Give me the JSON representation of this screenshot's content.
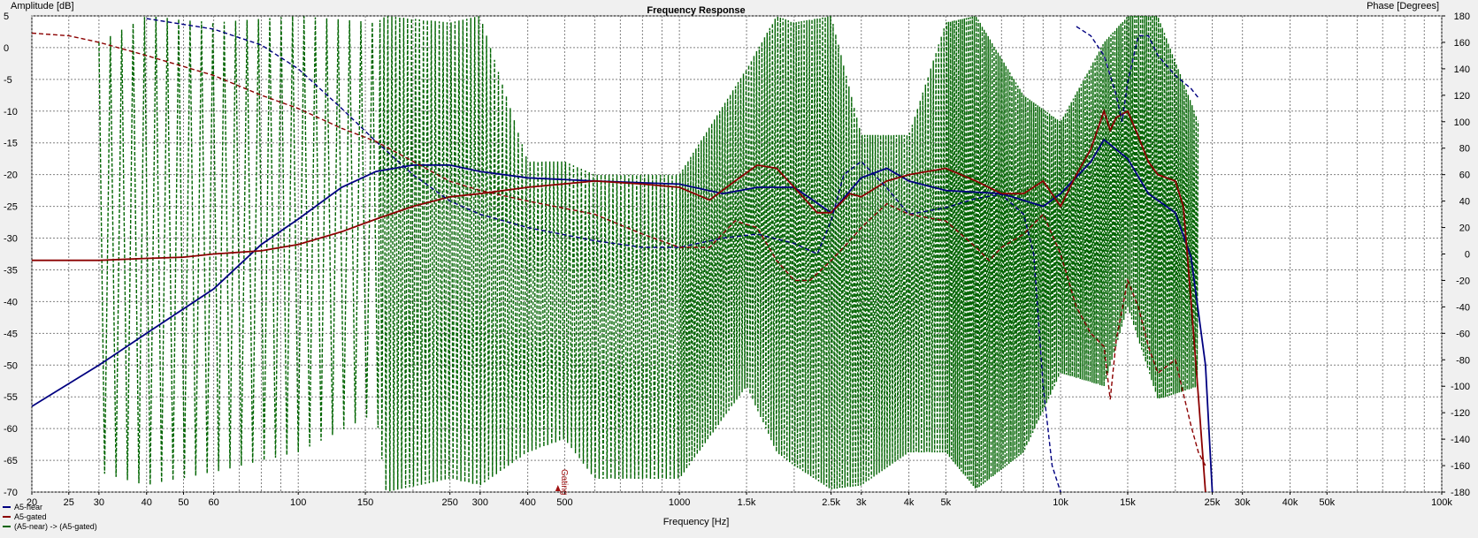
{
  "chart_data": {
    "type": "line",
    "title": "Frequency Response",
    "xlabel": "Frequency [Hz]",
    "ylabel_left": "Amplitude [dB]",
    "ylabel_right": "Phase [Degrees]",
    "x_scale": "log",
    "xlim": [
      20,
      100000
    ],
    "ylim_left": [
      -70,
      5
    ],
    "ylim_right": [
      -180,
      180
    ],
    "x_ticks": [
      {
        "v": 20,
        "label": "20"
      },
      {
        "v": 25,
        "label": "25"
      },
      {
        "v": 30,
        "label": "30"
      },
      {
        "v": 40,
        "label": "40"
      },
      {
        "v": 50,
        "label": "50"
      },
      {
        "v": 60,
        "label": "60"
      },
      {
        "v": 100,
        "label": "100"
      },
      {
        "v": 150,
        "label": "150"
      },
      {
        "v": 250,
        "label": "250"
      },
      {
        "v": 300,
        "label": "300"
      },
      {
        "v": 400,
        "label": "400"
      },
      {
        "v": 500,
        "label": "500"
      },
      {
        "v": 1000,
        "label": "1000"
      },
      {
        "v": 1500,
        "label": "1.5k"
      },
      {
        "v": 2500,
        "label": "2.5k"
      },
      {
        "v": 3000,
        "label": "3k"
      },
      {
        "v": 4000,
        "label": "4k"
      },
      {
        "v": 5000,
        "label": "5k"
      },
      {
        "v": 10000,
        "label": "10k"
      },
      {
        "v": 15000,
        "label": "15k"
      },
      {
        "v": 25000,
        "label": "25k"
      },
      {
        "v": 30000,
        "label": "30k"
      },
      {
        "v": 40000,
        "label": "40k"
      },
      {
        "v": 50000,
        "label": "50k"
      },
      {
        "v": 100000,
        "label": "100k"
      }
    ],
    "x_grid": [
      20,
      25,
      30,
      40,
      50,
      60,
      70,
      80,
      90,
      100,
      150,
      200,
      250,
      300,
      400,
      500,
      600,
      700,
      800,
      900,
      1000,
      1500,
      2000,
      2500,
      3000,
      4000,
      5000,
      6000,
      7000,
      8000,
      9000,
      10000,
      15000,
      20000,
      25000,
      30000,
      40000,
      50000,
      60000,
      70000,
      80000,
      90000,
      100000
    ],
    "y_ticks_left": [
      5,
      0,
      -5,
      -10,
      -15,
      -20,
      -25,
      -30,
      -35,
      -40,
      -45,
      -50,
      -55,
      -60,
      -65,
      -70
    ],
    "y_ticks_right": [
      180,
      160,
      140,
      120,
      100,
      80,
      60,
      40,
      20,
      0,
      -20,
      -40,
      -60,
      -80,
      -100,
      -120,
      -140,
      -160,
      -180
    ],
    "grid": true,
    "legend_position": "bottom-left",
    "marker": {
      "label": "Gating",
      "x": 480,
      "color": "#a01010"
    },
    "colors": {
      "blue": "#000080",
      "red": "#8b0000",
      "green": "#006400",
      "bg": "#ffffff"
    },
    "series": [
      {
        "name": "A5-near",
        "kind": "magnitude",
        "axis": "left",
        "color": "#000080",
        "x": [
          20,
          30,
          40,
          60,
          80,
          100,
          130,
          160,
          200,
          250,
          300,
          400,
          600,
          1000,
          1300,
          1600,
          2000,
          2500,
          3000,
          3500,
          4000,
          5000,
          7000,
          9000,
          10000,
          12000,
          13000,
          15000,
          17000,
          20000,
          22000,
          24000,
          25000
        ],
        "y": [
          -56.5,
          -50,
          -45,
          -38,
          -31,
          -27,
          -22,
          -19.5,
          -18.5,
          -18.5,
          -19.5,
          -20.5,
          -21,
          -21.5,
          -23,
          -22,
          -22,
          -26,
          -20.5,
          -19,
          -21,
          -22.5,
          -23,
          -25,
          -23,
          -18,
          -14.5,
          -17.5,
          -23,
          -26,
          -33,
          -50,
          -70
        ]
      },
      {
        "name": "A5-gated",
        "kind": "magnitude",
        "axis": "left",
        "color": "#8b0000",
        "x": [
          20,
          30,
          40,
          50,
          60,
          80,
          100,
          130,
          160,
          200,
          250,
          300,
          400,
          600,
          800,
          1000,
          1200,
          1400,
          1600,
          1800,
          2000,
          2300,
          2500,
          2800,
          3000,
          3500,
          4000,
          5000,
          6000,
          7000,
          8000,
          9000,
          10000,
          11000,
          12000,
          13000,
          13500,
          14000,
          15000,
          16000,
          17000,
          18000,
          20000,
          21000,
          22000,
          23000,
          24000
        ],
        "y": [
          -33.5,
          -33.5,
          -33.2,
          -33,
          -32.5,
          -32,
          -31,
          -29,
          -27,
          -25,
          -23.5,
          -23,
          -22,
          -21,
          -21.5,
          -22,
          -24,
          -21,
          -18.5,
          -19,
          -22,
          -26,
          -26,
          -23,
          -23.5,
          -21,
          -20,
          -19,
          -21,
          -23,
          -23,
          -21,
          -25,
          -20,
          -16,
          -10,
          -13,
          -11,
          -10,
          -14,
          -18,
          -20,
          -21,
          -25,
          -40,
          -55,
          -70
        ]
      },
      {
        "name": "A5-near",
        "kind": "phase",
        "axis": "right",
        "color": "#000080",
        "x": [
          40,
          60,
          80,
          100,
          130,
          160,
          200,
          250,
          300,
          400,
          600,
          800,
          1000,
          1300,
          1600,
          2000,
          2300,
          2500,
          2700,
          3000,
          3500,
          4000,
          5000,
          6000,
          7000,
          8000,
          8500,
          9000,
          9500,
          10000
        ],
        "y": [
          178,
          170,
          158,
          140,
          110,
          85,
          60,
          40,
          30,
          20,
          10,
          5,
          5,
          12,
          15,
          8,
          0,
          25,
          60,
          70,
          50,
          30,
          35,
          42,
          45,
          30,
          0,
          -100,
          -160,
          -180
        ]
      },
      {
        "name": "A5-near",
        "kind": "phase",
        "axis": "right",
        "color": "#000080",
        "x": [
          11000,
          12000,
          13000,
          14000,
          14500,
          15000,
          16000,
          17000,
          18000,
          20000,
          22000,
          23000
        ],
        "y": [
          172,
          165,
          150,
          120,
          100,
          130,
          165,
          165,
          150,
          135,
          125,
          118
        ]
      },
      {
        "name": "A5-gated",
        "kind": "phase",
        "axis": "right",
        "color": "#8b0000",
        "x": [
          20,
          25,
          30,
          40,
          60,
          80,
          100,
          130,
          160,
          200,
          250,
          300,
          400,
          600,
          800,
          1000,
          1200,
          1400,
          1600,
          1800,
          2000,
          2200,
          2500,
          2800,
          3000,
          3500,
          4000,
          5000,
          6000,
          6500,
          7000,
          8000,
          9000,
          10000,
          11000,
          12000,
          13000,
          13500,
          14000,
          15000,
          16000,
          17000,
          18000,
          20000,
          22000,
          23000,
          24000
        ],
        "y": [
          167,
          165,
          160,
          150,
          135,
          120,
          110,
          95,
          85,
          70,
          55,
          48,
          40,
          30,
          15,
          5,
          5,
          25,
          20,
          -5,
          -20,
          -20,
          -5,
          10,
          20,
          38,
          30,
          25,
          5,
          -5,
          5,
          15,
          30,
          0,
          -40,
          -60,
          -70,
          -110,
          -65,
          -20,
          -40,
          -70,
          -90,
          -80,
          -130,
          -150,
          -160
        ]
      },
      {
        "name": "(A5-near) -> (A5-gated)",
        "kind": "phase",
        "axis": "right",
        "color": "#006400",
        "style": "dashed",
        "envelope_x": [
          30,
          40,
          60,
          100,
          160,
          170,
          250,
          300,
          400,
          500,
          600,
          800,
          1000,
          1500,
          1800,
          2000,
          2500,
          3000,
          4000,
          5000,
          6000,
          8000,
          10000,
          13000,
          15000,
          18000,
          23000
        ],
        "envelope_top": [
          160,
          180,
          175,
          180,
          175,
          180,
          175,
          180,
          70,
          70,
          60,
          60,
          60,
          140,
          180,
          175,
          180,
          90,
          90,
          175,
          180,
          120,
          100,
          160,
          180,
          180,
          100
        ],
        "envelope_bottom": [
          -165,
          -175,
          -165,
          -150,
          -120,
          -180,
          -170,
          -175,
          -150,
          -140,
          -170,
          -170,
          -170,
          -100,
          -150,
          -160,
          -178,
          -175,
          -150,
          -150,
          -178,
          -150,
          -90,
          -100,
          -40,
          -110,
          -100
        ]
      }
    ]
  }
}
